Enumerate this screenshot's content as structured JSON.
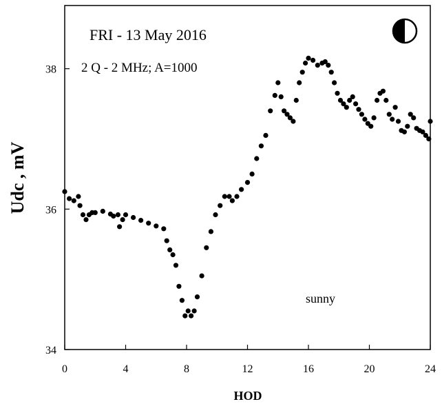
{
  "chart_data": {
    "type": "scatter",
    "title": "FRI - 13 May 2016",
    "subtitle": "2 Q - 2 MHz; A=1000",
    "annotation": "sunny",
    "moon_icon": "half-moon-icon",
    "xlabel": "HOD",
    "ylabel": "Udc  ,  mV",
    "xlim": [
      0,
      24
    ],
    "ylim": [
      34,
      38.9
    ],
    "xticks": [
      "0",
      "4",
      "8",
      "12",
      "16",
      "20",
      "24"
    ],
    "yticks": [
      "34",
      "36",
      "38"
    ],
    "grid": false,
    "legend": "none",
    "marker_color": "#000000",
    "series": [
      {
        "x": [
          0,
          0.3,
          0.6,
          0.9,
          1.0,
          1.2,
          1.4,
          1.6,
          1.8,
          2.0,
          2.5,
          3.0,
          3.2,
          3.5,
          3.6,
          3.8,
          4.0,
          4.5,
          5.0,
          5.5,
          6.0,
          6.5,
          6.7,
          6.9,
          7.1,
          7.3,
          7.5,
          7.7,
          7.9,
          8.1,
          8.3,
          8.5,
          8.7,
          9.0,
          9.3,
          9.6,
          9.9,
          10.2,
          10.5,
          10.8,
          11.0,
          11.3,
          11.6,
          12.0,
          12.3,
          12.6,
          12.9,
          13.2,
          13.5,
          13.8,
          14.0,
          14.2,
          14.4,
          14.6,
          14.8,
          15.0,
          15.2,
          15.4,
          15.6,
          15.8,
          16.0,
          16.3,
          16.6,
          16.9,
          17.1,
          17.3,
          17.5,
          17.7,
          17.9,
          18.1,
          18.3,
          18.5,
          18.7,
          18.9,
          19.1,
          19.3,
          19.5,
          19.7,
          19.9,
          20.1,
          20.3,
          20.5,
          20.7,
          20.9,
          21.1,
          21.3,
          21.5,
          21.7,
          21.9,
          22.1,
          22.3,
          22.5,
          22.7,
          22.9,
          23.1,
          23.3,
          23.5,
          23.7,
          23.9,
          24.0
        ],
        "y": [
          36.25,
          36.15,
          36.12,
          36.18,
          36.05,
          35.92,
          35.85,
          35.92,
          35.95,
          35.95,
          35.97,
          35.93,
          35.9,
          35.92,
          35.75,
          35.85,
          35.92,
          35.88,
          35.84,
          35.8,
          35.76,
          35.72,
          35.55,
          35.42,
          35.35,
          35.2,
          34.9,
          34.7,
          34.48,
          34.55,
          34.48,
          34.55,
          34.75,
          35.05,
          35.45,
          35.68,
          35.92,
          36.05,
          36.18,
          36.18,
          36.12,
          36.18,
          36.28,
          36.38,
          36.5,
          36.72,
          36.9,
          37.05,
          37.4,
          37.62,
          37.8,
          37.6,
          37.4,
          37.35,
          37.3,
          37.25,
          37.55,
          37.8,
          37.95,
          38.08,
          38.15,
          38.12,
          38.05,
          38.08,
          38.1,
          38.05,
          37.95,
          37.8,
          37.65,
          37.55,
          37.5,
          37.45,
          37.55,
          37.6,
          37.5,
          37.42,
          37.35,
          37.28,
          37.22,
          37.18,
          37.3,
          37.55,
          37.65,
          37.68,
          37.55,
          37.35,
          37.28,
          37.45,
          37.25,
          37.12,
          37.1,
          37.18,
          37.35,
          37.3,
          37.15,
          37.12,
          37.1,
          37.05,
          37.0,
          37.25
        ]
      }
    ]
  }
}
